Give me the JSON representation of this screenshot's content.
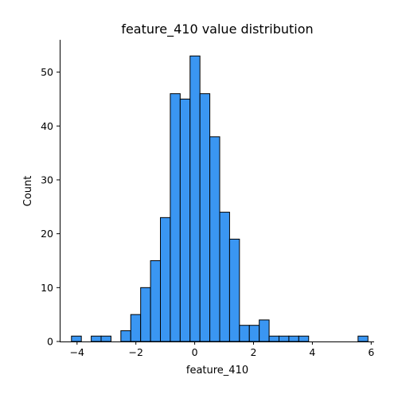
{
  "chart_data": {
    "type": "bar",
    "title": "feature_410 value distribution",
    "xlabel": "feature_410",
    "ylabel": "Count",
    "xlim": [
      -4.59,
      6.1
    ],
    "ylim": [
      0,
      56
    ],
    "x_ticks": [
      -4,
      -2,
      0,
      2,
      4,
      6
    ],
    "y_ticks": [
      0,
      10,
      20,
      30,
      40,
      50
    ],
    "bin_width": 0.336,
    "bin_start": -4.19,
    "values": [
      1,
      0,
      1,
      1,
      0,
      2,
      5,
      10,
      15,
      23,
      46,
      45,
      53,
      46,
      38,
      24,
      19,
      3,
      3,
      4,
      1,
      1,
      1,
      1,
      0,
      0,
      0,
      0,
      0,
      1
    ],
    "bar_color": "#3a96f2",
    "grid": false,
    "legend": "none"
  }
}
